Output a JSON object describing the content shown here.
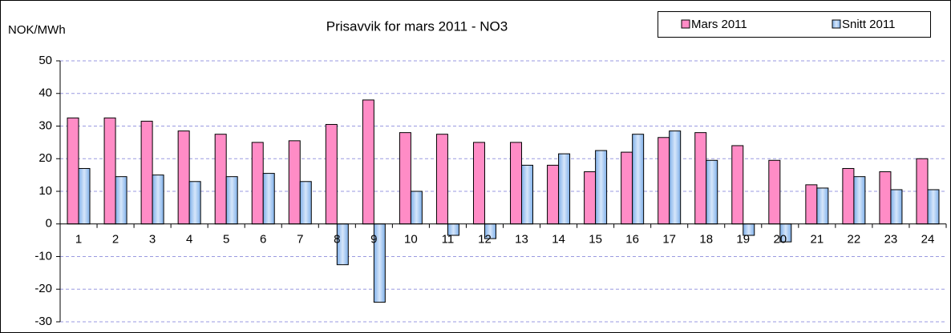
{
  "chart_data": {
    "type": "bar",
    "title": "Prisavvik for mars 2011 - NO3",
    "y_axis_label": "NOK/MWh",
    "categories": [
      "1",
      "2",
      "3",
      "4",
      "5",
      "6",
      "7",
      "8",
      "9",
      "10",
      "11",
      "12",
      "13",
      "14",
      "15",
      "16",
      "17",
      "18",
      "19",
      "20",
      "21",
      "22",
      "23",
      "24"
    ],
    "series": [
      {
        "name": "Mars 2011",
        "color": "#ff8cc6",
        "values": [
          32.5,
          32.5,
          31.5,
          28.5,
          27.5,
          25,
          25.5,
          30.5,
          38,
          28,
          27.5,
          25,
          25,
          18,
          16,
          22,
          26.5,
          28,
          24,
          19.5,
          12,
          17,
          16,
          20
        ]
      },
      {
        "name": "Snitt 2011",
        "color": "#a9c9ef",
        "values": [
          17,
          14.5,
          15,
          13,
          14.5,
          15.5,
          13,
          -12.5,
          -24,
          10,
          -3.5,
          -4.5,
          18,
          21.5,
          22.5,
          27.5,
          28.5,
          19.5,
          -3.5,
          -5.5,
          11,
          14.5,
          10.5,
          10.5
        ]
      }
    ],
    "ylim": [
      -30,
      50
    ],
    "yticks": [
      -30,
      -20,
      -10,
      0,
      10,
      20,
      30,
      40,
      50
    ],
    "grid": true,
    "legend": "top-right"
  }
}
